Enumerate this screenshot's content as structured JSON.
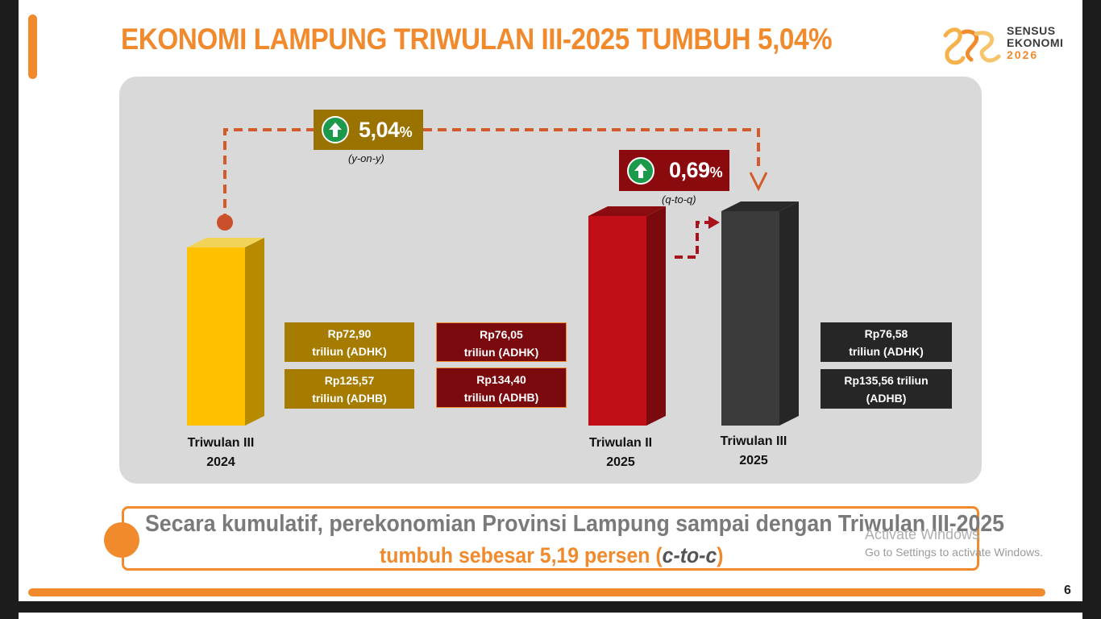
{
  "title": "EKONOMI LAMPUNG TRIWULAN III-2025 TUMBUH 5,04%",
  "logo": {
    "line1": "SENSUS",
    "line2": "EKONOMI",
    "year": "2026"
  },
  "growth_yoy": {
    "value": "5,04",
    "unit": "%",
    "note": "(y-on-y)",
    "direction": "up"
  },
  "growth_qtoq": {
    "value": "0,69",
    "unit": "%",
    "note": "(q-to-q)",
    "direction": "up"
  },
  "bars": [
    {
      "label_line1": "Triwulan III",
      "label_line2": "2024",
      "color": "#ffc000",
      "side_color": "#b88a00"
    },
    {
      "label_line1": "Triwulan II",
      "label_line2": "2025",
      "color": "#c00f16",
      "side_color": "#7a0a0e"
    },
    {
      "label_line1": "Triwulan III",
      "label_line2": "2025",
      "color": "#3b3b3b",
      "side_color": "#262626"
    }
  ],
  "values": {
    "tw3_2024": {
      "adhk_line1": "Rp72,90",
      "adhk_line2": "triliun (ADHK)",
      "adhb_line1": "Rp125,57",
      "adhb_line2": "triliun (ADHB)"
    },
    "tw2_2025": {
      "adhk_line1": "Rp76,05",
      "adhk_line2": "triliun (ADHK)",
      "adhb_line1": "Rp134,40",
      "adhb_line2": "triliun (ADHB)"
    },
    "tw3_2025": {
      "adhk_line1": "Rp76,58",
      "adhk_line2": "triliun (ADHK)",
      "adhb_line1": "Rp135,56 triliun",
      "adhb_line2": "(ADHB)"
    }
  },
  "summary": {
    "line1": "Secara kumulatif, perekonomian Provinsi Lampung sampai dengan Triwulan III-2025",
    "line2_main": "tumbuh sebesar 5,19 persen (",
    "line2_italic": "c-to-c",
    "line2_end": ")"
  },
  "page_number": "6",
  "watermark": {
    "line1": "Activate Windows",
    "line2": "Go to Settings to activate Windows."
  },
  "colors": {
    "accent": "#f08a2c",
    "panel": "#d9d9d9",
    "gold_box": "#a67c00",
    "maroon_box": "#7a0a0e",
    "dark_box": "#262626",
    "yoy_box": "#9a7200",
    "qtoq_box": "#8b0a0e",
    "arrow_green": "#1a9a4a",
    "connector": "#d35a2a"
  }
}
